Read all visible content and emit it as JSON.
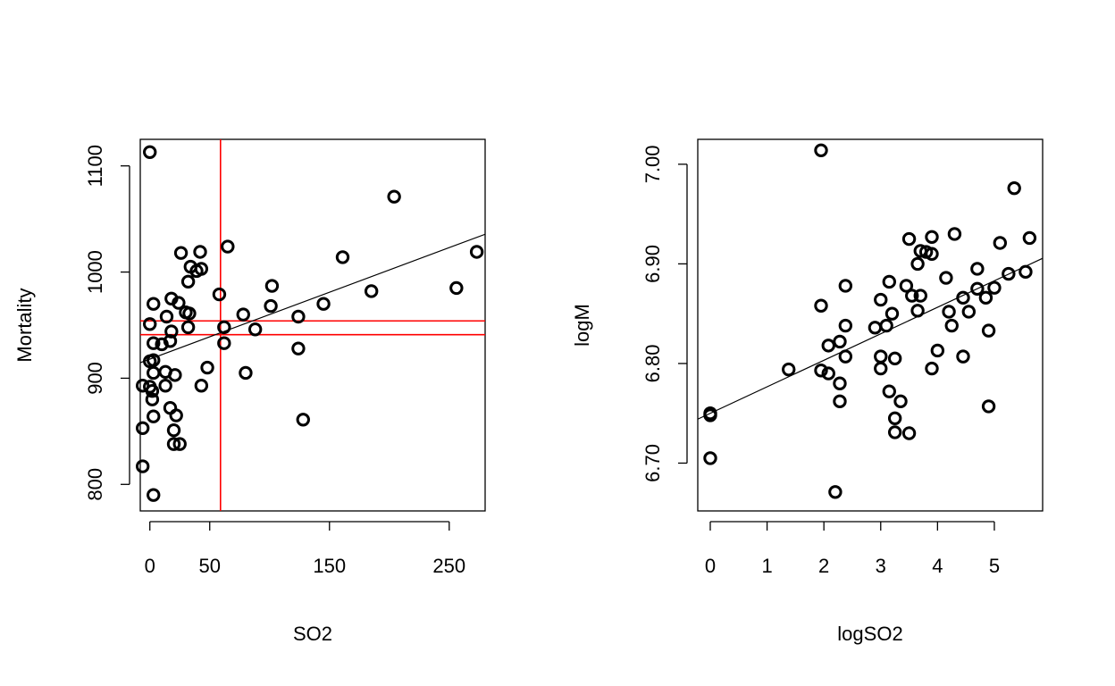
{
  "colors": {
    "points": "#000000",
    "fit_line": "#000000",
    "reference_lines": "#ff0000",
    "frame": "#000000",
    "background": "#ffffff"
  },
  "chart_data": [
    {
      "type": "scatter",
      "title": "",
      "xlabel": "SO2",
      "ylabel": "Mortality",
      "xlim": [
        -8,
        280
      ],
      "ylim": [
        775,
        1125
      ],
      "x_ticks": [
        0,
        50,
        150,
        250
      ],
      "x_tick_labels": [
        "0",
        "50",
        "150",
        "250"
      ],
      "y_ticks": [
        800,
        900,
        1000,
        1100
      ],
      "y_tick_labels": [
        "800",
        "900",
        "1000",
        "1100"
      ],
      "grid": false,
      "marker": "open-circle",
      "fit_line": {
        "intercept": 918,
        "slope": 0.42
      },
      "reference_lines": {
        "vertical_x": [
          59
        ],
        "horizontal_y": [
          941,
          954
        ]
      },
      "points": [
        [
          0,
          1113
        ],
        [
          -6,
          893
        ],
        [
          -6,
          817
        ],
        [
          -6,
          853
        ],
        [
          0,
          951
        ],
        [
          0,
          916
        ],
        [
          0,
          892
        ],
        [
          2,
          888
        ],
        [
          2,
          880
        ],
        [
          3,
          970
        ],
        [
          3,
          917
        ],
        [
          3,
          864
        ],
        [
          3,
          933
        ],
        [
          3,
          905
        ],
        [
          3,
          790
        ],
        [
          10,
          932
        ],
        [
          13,
          906
        ],
        [
          13,
          893
        ],
        [
          14,
          958
        ],
        [
          17,
          935
        ],
        [
          17,
          872
        ],
        [
          18,
          944
        ],
        [
          18,
          975
        ],
        [
          20,
          851
        ],
        [
          20,
          838
        ],
        [
          21,
          903
        ],
        [
          22,
          865
        ],
        [
          24,
          971
        ],
        [
          25,
          838
        ],
        [
          26,
          1018
        ],
        [
          30,
          962
        ],
        [
          32,
          991
        ],
        [
          33,
          961
        ],
        [
          32,
          948
        ],
        [
          34,
          1005
        ],
        [
          39,
          1001
        ],
        [
          42,
          1019
        ],
        [
          43,
          1003
        ],
        [
          43,
          893
        ],
        [
          48,
          910
        ],
        [
          58,
          979
        ],
        [
          62,
          948
        ],
        [
          62,
          933
        ],
        [
          65,
          1024
        ],
        [
          78,
          960
        ],
        [
          80,
          905
        ],
        [
          88,
          946
        ],
        [
          101,
          968
        ],
        [
          102,
          987
        ],
        [
          124,
          958
        ],
        [
          124,
          928
        ],
        [
          128,
          861
        ],
        [
          145,
          970
        ],
        [
          161,
          1014
        ],
        [
          185,
          982
        ],
        [
          204,
          1071
        ],
        [
          256,
          985
        ],
        [
          273,
          1019
        ]
      ]
    },
    {
      "type": "scatter",
      "title": "",
      "xlabel": "logSO2",
      "ylabel": "logM",
      "xlim": [
        -0.22,
        5.85
      ],
      "ylim": [
        6.652,
        7.025
      ],
      "x_ticks": [
        0,
        1,
        2,
        3,
        4,
        5
      ],
      "x_tick_labels": [
        "0",
        "1",
        "2",
        "3",
        "4",
        "5"
      ],
      "y_ticks": [
        6.7,
        6.8,
        6.9,
        7.0
      ],
      "y_tick_labels": [
        "6.70",
        "6.80",
        "6.90",
        "7.00"
      ],
      "grid": false,
      "marker": "open-circle",
      "fit_line": {
        "intercept": 6.75,
        "slope": 0.0266
      },
      "points": [
        [
          0,
          6.75
        ],
        [
          0,
          6.748
        ],
        [
          0,
          6.705
        ],
        [
          1.38,
          6.794
        ],
        [
          1.95,
          7.014
        ],
        [
          1.95,
          6.858
        ],
        [
          1.95,
          6.793
        ],
        [
          2.08,
          6.79
        ],
        [
          2.08,
          6.818
        ],
        [
          2.2,
          6.671
        ],
        [
          2.28,
          6.822
        ],
        [
          2.28,
          6.78
        ],
        [
          2.28,
          6.762
        ],
        [
          2.38,
          6.807
        ],
        [
          2.38,
          6.838
        ],
        [
          2.38,
          6.878
        ],
        [
          2.9,
          6.836
        ],
        [
          3.0,
          6.807
        ],
        [
          3.0,
          6.795
        ],
        [
          3.0,
          6.864
        ],
        [
          3.1,
          6.838
        ],
        [
          3.15,
          6.772
        ],
        [
          3.15,
          6.882
        ],
        [
          3.2,
          6.85
        ],
        [
          3.25,
          6.805
        ],
        [
          3.25,
          6.745
        ],
        [
          3.25,
          6.731
        ],
        [
          3.35,
          6.762
        ],
        [
          3.45,
          6.878
        ],
        [
          3.5,
          6.73
        ],
        [
          3.5,
          6.925
        ],
        [
          3.55,
          6.868
        ],
        [
          3.65,
          6.853
        ],
        [
          3.65,
          6.9
        ],
        [
          3.7,
          6.913
        ],
        [
          3.7,
          6.868
        ],
        [
          3.8,
          6.912
        ],
        [
          3.9,
          6.927
        ],
        [
          3.9,
          6.795
        ],
        [
          3.9,
          6.91
        ],
        [
          4.0,
          6.813
        ],
        [
          4.15,
          6.886
        ],
        [
          4.2,
          6.852
        ],
        [
          4.25,
          6.838
        ],
        [
          4.3,
          6.93
        ],
        [
          4.45,
          6.807
        ],
        [
          4.45,
          6.866
        ],
        [
          4.55,
          6.852
        ],
        [
          4.7,
          6.875
        ],
        [
          4.7,
          6.895
        ],
        [
          4.85,
          6.866
        ],
        [
          4.9,
          6.833
        ],
        [
          4.9,
          6.757
        ],
        [
          5.0,
          6.876
        ],
        [
          5.1,
          6.921
        ],
        [
          5.25,
          6.89
        ],
        [
          5.35,
          6.976
        ],
        [
          5.55,
          6.892
        ],
        [
          5.62,
          6.926
        ]
      ]
    }
  ]
}
